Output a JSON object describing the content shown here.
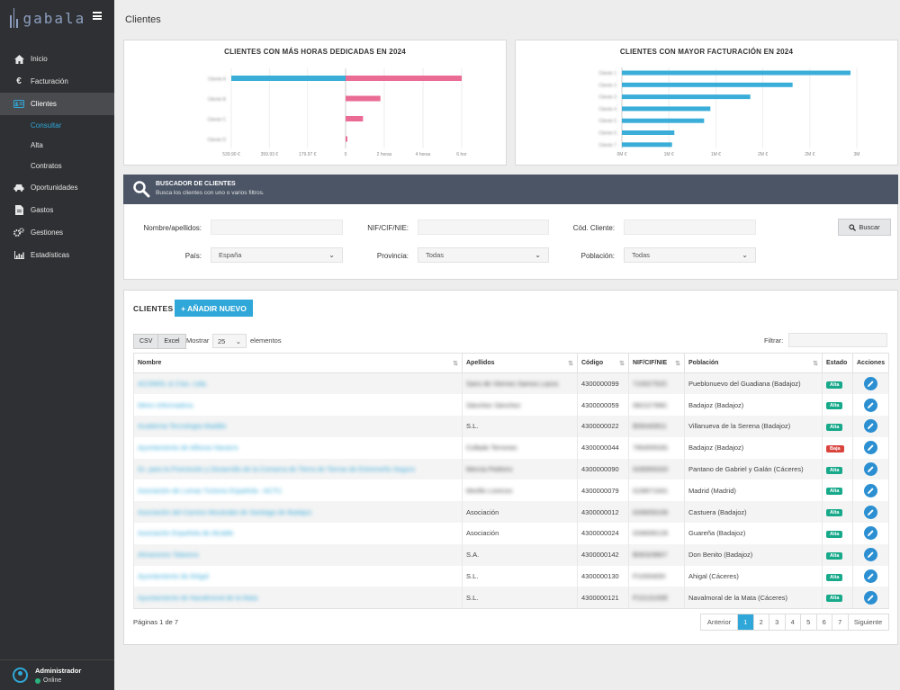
{
  "app": {
    "logo_text": "gabala"
  },
  "sidebar": {
    "items": [
      {
        "label": "Inicio",
        "icon": "home-icon"
      },
      {
        "label": "Facturación",
        "icon": "euro-icon"
      },
      {
        "label": "Clientes",
        "icon": "id-card-icon",
        "active": true
      },
      {
        "label": "Oportunidades",
        "icon": "car-icon"
      },
      {
        "label": "Gastos",
        "icon": "document-icon"
      },
      {
        "label": "Gestiones",
        "icon": "gears-icon"
      },
      {
        "label": "Estadísticas",
        "icon": "chart-icon"
      }
    ],
    "submenu": [
      {
        "label": "Consultar",
        "active": true
      },
      {
        "label": "Alta"
      },
      {
        "label": "Contratos"
      }
    ],
    "user": {
      "name": "Administrador",
      "status": "Online"
    }
  },
  "page": {
    "title": "Clientes"
  },
  "chart_data": [
    {
      "type": "bar",
      "orientation": "horizontal",
      "title": "CLIENTES CON MÁS HORAS DEDICADAS EN 2024",
      "categories": [
        "Cliente A",
        "Cliente B",
        "Cliente C",
        "Cliente D"
      ],
      "series": [
        {
          "name": "Importe",
          "color": "#3aaed8",
          "values": [
            539.9,
            0,
            0,
            0
          ]
        },
        {
          "name": "Horas",
          "color": "#ea6b93",
          "values": [
            6,
            1.8,
            0.9,
            0.05
          ]
        }
      ],
      "left_axis_ticks": [
        "539.90 €",
        "359.93 €",
        "179.97 €",
        "0"
      ],
      "right_axis_ticks": [
        "2 horas",
        "4 horas",
        "6 hor"
      ]
    },
    {
      "type": "bar",
      "orientation": "horizontal",
      "title": "CLIENTES CON MAYOR FACTURACIÓN EN 2024",
      "categories": [
        "Cliente 1",
        "Cliente 2",
        "Cliente 3",
        "Cliente 4",
        "Cliente 5",
        "Cliente 6",
        "Cliente 7"
      ],
      "series": [
        {
          "name": "Facturación",
          "color": "#3aaed8",
          "values": [
            2.92,
            2.18,
            1.64,
            1.13,
            1.05,
            0.67,
            0.64
          ]
        }
      ],
      "x_ticks": [
        "0M €",
        "1M €",
        "1M €",
        "2M €",
        "2M €",
        "3M"
      ],
      "xlim": [
        0,
        3
      ]
    }
  ],
  "search": {
    "title": "BUSCADOR DE CLIENTES",
    "subtitle": "Busca los clientes con uno o varios filtros.",
    "labels": {
      "name": "Nombre/apellidos:",
      "nif": "NIF/CIF/NIE:",
      "code": "Cód. Cliente:",
      "country": "País:",
      "province": "Provincia:",
      "town": "Población:"
    },
    "country_value": "España",
    "province_value": "Todas",
    "town_value": "Todas",
    "button": "Buscar"
  },
  "clients": {
    "title": "CLIENTES",
    "add_button": "+ AÑADIR NUEVO",
    "export_buttons": [
      "CSV",
      "Excel"
    ],
    "show_label": "Mostrar",
    "page_size": "25",
    "elements_label": "elementos",
    "filter_label": "Filtrar:",
    "columns": [
      "Nombre",
      "Apellidos",
      "Código",
      "NIF/CIF/NIE",
      "Población",
      "Estado",
      "Acciones"
    ],
    "rows": [
      {
        "name": "ACOMOL & Cías. Ltda.",
        "surname": "Sans de Viernes Samos Lazos",
        "code": "4300000099",
        "nif": "71002752C",
        "town": "Pueblonuevo del Guadiana (Badajoz)",
        "status": "Alta"
      },
      {
        "name": "Miren Informadora",
        "surname": "Sánchez Sánchez",
        "code": "4300000059",
        "nif": "08222789C",
        "town": "Badajoz (Badajoz)",
        "status": "Alta"
      },
      {
        "name": "Academia Tecnología Madálo",
        "surname": "S.L.",
        "code": "4300000022",
        "nif": "B06440811",
        "town": "Villanueva de la Serena (Badajoz)",
        "status": "Alta"
      },
      {
        "name": "Ayuntamiento de Alfonso Navarro",
        "surname": "Collado Terrones",
        "code": "4300000044",
        "nif": "79545553G",
        "town": "Badajoz (Badajoz)",
        "status": "Baja"
      },
      {
        "name": "Gr. para la Promoción y Desarrollo de la Comarca de Tierra de Tierras de Extremeño Seguro",
        "surname": "Mercia Pedrero",
        "code": "4300000090",
        "nif": "G06959320",
        "town": "Pantano de Gabriel y Galán (Cáceres)",
        "status": "Alta"
      },
      {
        "name": "Asociación de Lomas Turismo Española - ACTU",
        "surname": "Morillo Lorenzo",
        "code": "4300000079",
        "nif": "G28971641",
        "town": "Madrid (Madrid)",
        "status": "Alta"
      },
      {
        "name": "Asociación del Camino Mozárabe de Santiago de Badajoz",
        "surname": "Asociación",
        "code": "4300000012",
        "nif": "G06659106",
        "town": "Castuera (Badajoz)",
        "status": "Alta"
      },
      {
        "name": "Asociación Española de Alcalde",
        "surname": "Asociación",
        "code": "4300000024",
        "nif": "G06699126",
        "town": "Guareña (Badajoz)",
        "status": "Alta"
      },
      {
        "name": "Almacenes Talavera",
        "surname": "S.A.",
        "code": "4300000142",
        "nif": "B06329807",
        "town": "Don Benito (Badajoz)",
        "status": "Alta"
      },
      {
        "name": "Ayuntamiento de Ahigal",
        "surname": "S.L.",
        "code": "4300000130",
        "nif": "P1000400I",
        "town": "Ahigal (Cáceres)",
        "status": "Alta"
      },
      {
        "name": "Ayuntamiento de Navalmoral de la Mata",
        "surname": "S.L.",
        "code": "4300000121",
        "nif": "P1013100E",
        "town": "Navalmoral de la Mata (Cáceres)",
        "status": "Alta"
      }
    ],
    "page_info": "Páginas 1 de 7",
    "pager": {
      "prev": "Anterior",
      "pages": [
        "1",
        "2",
        "3",
        "4",
        "5",
        "6",
        "7"
      ],
      "next": "Siguiente"
    }
  }
}
